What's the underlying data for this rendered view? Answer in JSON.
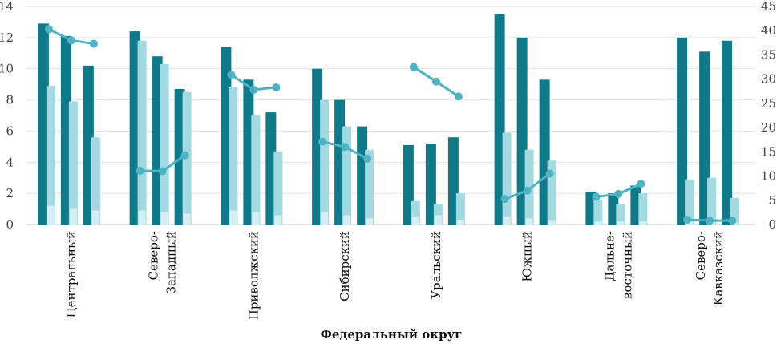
{
  "chart_data": {
    "type": "bar",
    "xlabel": "Федеральный округ",
    "categories": [
      [
        "Центральный"
      ],
      [
        "Северо-",
        "Западный"
      ],
      [
        "Приволжский"
      ],
      [
        "Сибирский"
      ],
      [
        "Уральский"
      ],
      [
        "Южный"
      ],
      [
        "Дальне-",
        "восточный"
      ],
      [
        "Северо-",
        "Кавказский"
      ]
    ],
    "ylim": [
      0,
      14
    ],
    "yticks": [
      0,
      2,
      4,
      6,
      8,
      10,
      12,
      14
    ],
    "y2lim": [
      0,
      45
    ],
    "y2ticks": [
      0,
      5,
      10,
      15,
      20,
      25,
      30,
      35,
      40,
      45
    ],
    "colors": {
      "dark": "#0e7a8a",
      "mid": "#a3d9e0",
      "pale": "#d4eef2",
      "line": "#4db3c4"
    },
    "bar_groups": [
      [
        [
          12.9,
          8.9,
          1.2
        ],
        [
          12.1,
          7.9,
          1.0
        ],
        [
          10.2,
          5.6,
          0.9
        ]
      ],
      [
        [
          12.4,
          11.8,
          0.9
        ],
        [
          10.8,
          10.3,
          0.8
        ],
        [
          8.7,
          8.5,
          0.7
        ]
      ],
      [
        [
          11.4,
          8.8,
          0.9
        ],
        [
          9.3,
          7.0,
          0.8
        ],
        [
          7.2,
          4.7,
          0.6
        ]
      ],
      [
        [
          10.0,
          8.0,
          0.8
        ],
        [
          8.0,
          6.3,
          0.6
        ],
        [
          6.3,
          4.8,
          0.4
        ]
      ],
      [
        [
          5.1,
          1.5,
          0.5
        ],
        [
          5.2,
          1.3,
          0.6
        ],
        [
          5.6,
          2.0,
          0.3
        ]
      ],
      [
        [
          13.5,
          5.9,
          0.5
        ],
        [
          12.0,
          4.8,
          0.4
        ],
        [
          9.3,
          4.1,
          0.3
        ]
      ],
      [
        [
          2.1,
          1.6,
          0.2
        ],
        [
          2.0,
          1.3,
          0.2
        ],
        [
          2.5,
          2.0,
          0.2
        ]
      ],
      [
        [
          12.0,
          2.9,
          0.2
        ],
        [
          11.1,
          3.0,
          0.2
        ],
        [
          11.8,
          1.7,
          0.1
        ]
      ]
    ],
    "line_groups": [
      [
        40.3,
        38.0,
        37.3
      ],
      [
        11.1,
        11.0,
        14.3
      ],
      [
        30.9,
        27.8,
        28.3
      ],
      [
        17.1,
        16.0,
        13.6
      ],
      [
        32.5,
        29.5,
        26.4
      ],
      [
        5.3,
        7.0,
        10.5
      ],
      [
        5.7,
        6.3,
        8.4
      ],
      [
        1.0,
        0.8,
        0.8
      ]
    ]
  }
}
